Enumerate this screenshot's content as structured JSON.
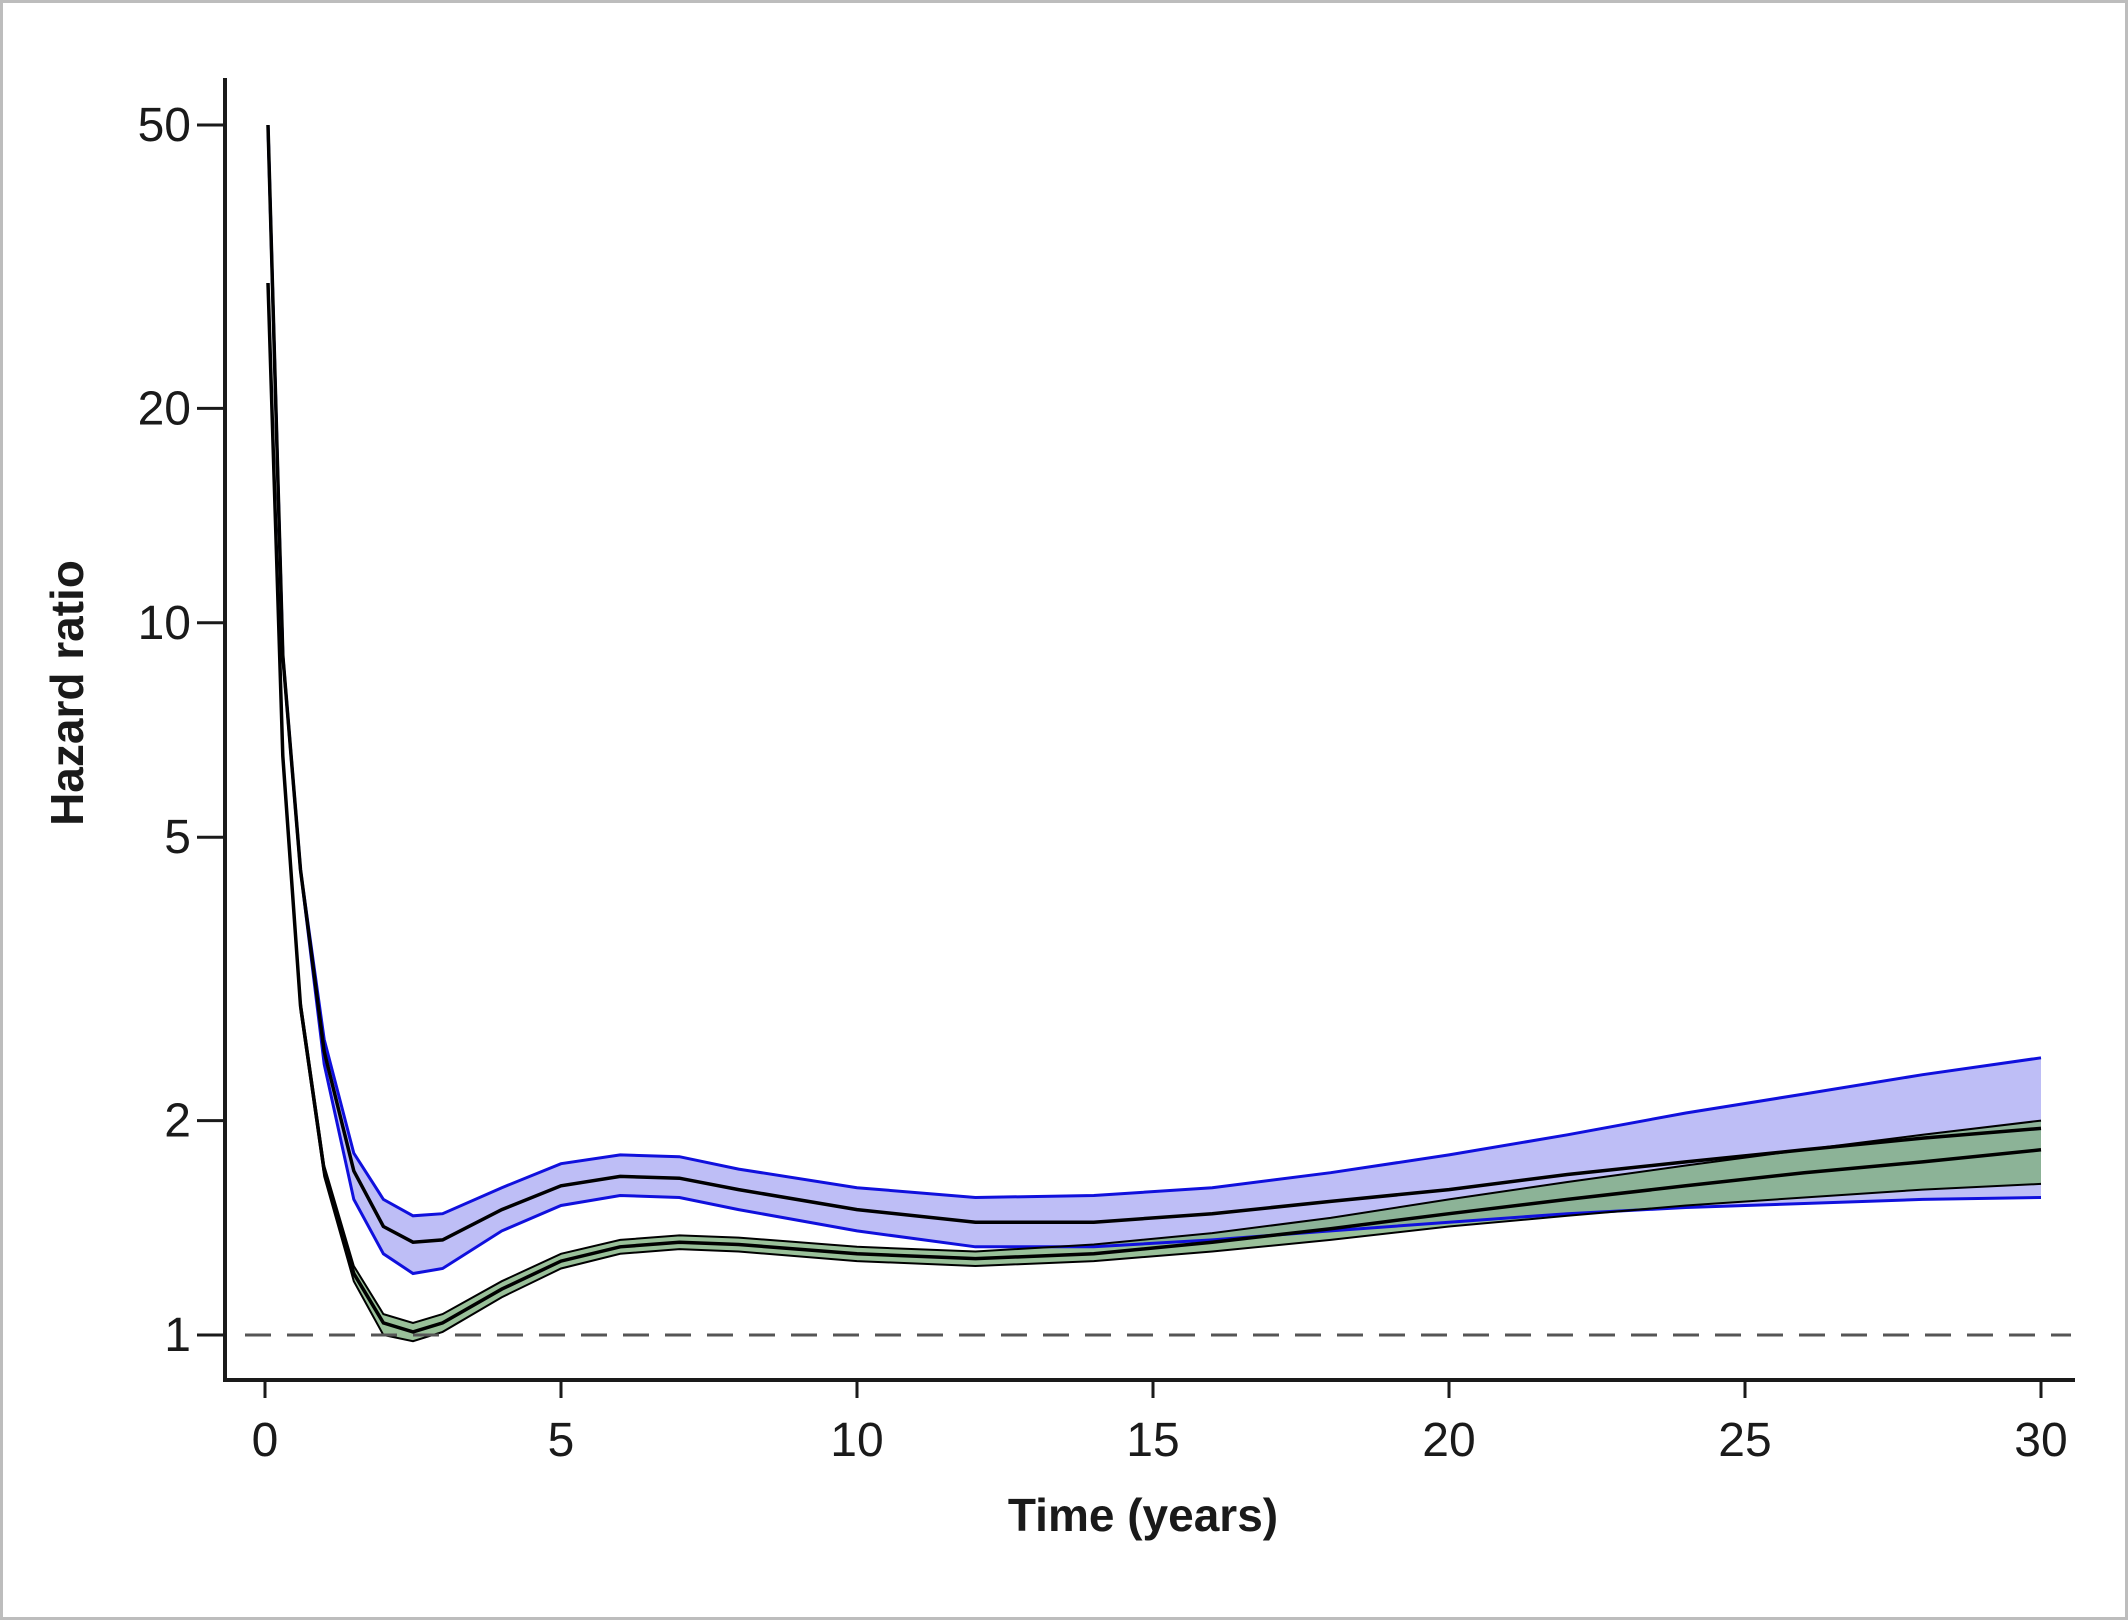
{
  "chart_data": {
    "type": "line",
    "title": "",
    "xlabel": "Time (years)",
    "ylabel": "Hazard ratio",
    "xlim": [
      0,
      30
    ],
    "ylim": [
      0.8,
      60
    ],
    "y_scale": "log",
    "x_ticks": [
      0,
      5,
      10,
      15,
      20,
      25,
      30
    ],
    "y_ticks": [
      1,
      2,
      5,
      10,
      20,
      50
    ],
    "grid": false,
    "reference_line": {
      "y": 1,
      "style": "dashed"
    },
    "series": [
      {
        "color": "#000000",
        "band_color": "#b3b3f5",
        "band_edge_color": "#1010dd",
        "points": [
          {
            "x": 0.05,
            "y": 50,
            "lower": 50,
            "upper": 50
          },
          {
            "x": 0.3,
            "y": 9.0,
            "lower": 9.0,
            "upper": 9.0
          },
          {
            "x": 0.6,
            "y": 4.5,
            "lower": 4.5,
            "upper": 4.5
          },
          {
            "x": 1.0,
            "y": 2.5,
            "lower": 2.4,
            "upper": 2.6
          },
          {
            "x": 1.5,
            "y": 1.7,
            "lower": 1.55,
            "upper": 1.8
          },
          {
            "x": 2.0,
            "y": 1.42,
            "lower": 1.3,
            "upper": 1.55
          },
          {
            "x": 2.5,
            "y": 1.35,
            "lower": 1.22,
            "upper": 1.47
          },
          {
            "x": 3.0,
            "y": 1.36,
            "lower": 1.24,
            "upper": 1.48
          },
          {
            "x": 4.0,
            "y": 1.5,
            "lower": 1.4,
            "upper": 1.61
          },
          {
            "x": 5.0,
            "y": 1.62,
            "lower": 1.52,
            "upper": 1.74
          },
          {
            "x": 6.0,
            "y": 1.67,
            "lower": 1.57,
            "upper": 1.79
          },
          {
            "x": 7.0,
            "y": 1.66,
            "lower": 1.56,
            "upper": 1.78
          },
          {
            "x": 8.0,
            "y": 1.6,
            "lower": 1.5,
            "upper": 1.71
          },
          {
            "x": 10.0,
            "y": 1.5,
            "lower": 1.4,
            "upper": 1.61
          },
          {
            "x": 12.0,
            "y": 1.44,
            "lower": 1.33,
            "upper": 1.56
          },
          {
            "x": 14.0,
            "y": 1.44,
            "lower": 1.33,
            "upper": 1.57
          },
          {
            "x": 16.0,
            "y": 1.48,
            "lower": 1.36,
            "upper": 1.61
          },
          {
            "x": 18.0,
            "y": 1.54,
            "lower": 1.4,
            "upper": 1.69
          },
          {
            "x": 20.0,
            "y": 1.6,
            "lower": 1.44,
            "upper": 1.79
          },
          {
            "x": 22.0,
            "y": 1.68,
            "lower": 1.48,
            "upper": 1.91
          },
          {
            "x": 24.0,
            "y": 1.75,
            "lower": 1.51,
            "upper": 2.05
          },
          {
            "x": 26.0,
            "y": 1.82,
            "lower": 1.53,
            "upper": 2.18
          },
          {
            "x": 28.0,
            "y": 1.89,
            "lower": 1.55,
            "upper": 2.32
          },
          {
            "x": 30.0,
            "y": 1.95,
            "lower": 1.56,
            "upper": 2.45
          }
        ]
      },
      {
        "color": "#000000",
        "band_color": "#7fb07f",
        "band_edge_color": "#000000",
        "overlap_color": "#6b9aa8",
        "points": [
          {
            "x": 0.05,
            "y": 30,
            "lower": 30,
            "upper": 30
          },
          {
            "x": 0.3,
            "y": 6.5,
            "lower": 6.5,
            "upper": 6.5
          },
          {
            "x": 0.6,
            "y": 2.9,
            "lower": 2.85,
            "upper": 2.95
          },
          {
            "x": 1.0,
            "y": 1.7,
            "lower": 1.67,
            "upper": 1.73
          },
          {
            "x": 1.5,
            "y": 1.22,
            "lower": 1.19,
            "upper": 1.25
          },
          {
            "x": 2.0,
            "y": 1.04,
            "lower": 1.0,
            "upper": 1.07
          },
          {
            "x": 2.5,
            "y": 1.01,
            "lower": 0.98,
            "upper": 1.04
          },
          {
            "x": 3.0,
            "y": 1.04,
            "lower": 1.01,
            "upper": 1.07
          },
          {
            "x": 4.0,
            "y": 1.16,
            "lower": 1.13,
            "upper": 1.19
          },
          {
            "x": 5.0,
            "y": 1.27,
            "lower": 1.24,
            "upper": 1.3
          },
          {
            "x": 6.0,
            "y": 1.33,
            "lower": 1.3,
            "upper": 1.36
          },
          {
            "x": 7.0,
            "y": 1.35,
            "lower": 1.32,
            "upper": 1.38
          },
          {
            "x": 8.0,
            "y": 1.34,
            "lower": 1.31,
            "upper": 1.37
          },
          {
            "x": 10.0,
            "y": 1.3,
            "lower": 1.27,
            "upper": 1.33
          },
          {
            "x": 12.0,
            "y": 1.28,
            "lower": 1.25,
            "upper": 1.31
          },
          {
            "x": 14.0,
            "y": 1.3,
            "lower": 1.27,
            "upper": 1.34
          },
          {
            "x": 16.0,
            "y": 1.35,
            "lower": 1.31,
            "upper": 1.39
          },
          {
            "x": 18.0,
            "y": 1.41,
            "lower": 1.36,
            "upper": 1.46
          },
          {
            "x": 20.0,
            "y": 1.48,
            "lower": 1.42,
            "upper": 1.55
          },
          {
            "x": 22.0,
            "y": 1.55,
            "lower": 1.47,
            "upper": 1.64
          },
          {
            "x": 24.0,
            "y": 1.62,
            "lower": 1.52,
            "upper": 1.73
          },
          {
            "x": 26.0,
            "y": 1.69,
            "lower": 1.56,
            "upper": 1.82
          },
          {
            "x": 28.0,
            "y": 1.75,
            "lower": 1.6,
            "upper": 1.91
          },
          {
            "x": 30.0,
            "y": 1.82,
            "lower": 1.63,
            "upper": 2.0
          }
        ]
      }
    ]
  }
}
